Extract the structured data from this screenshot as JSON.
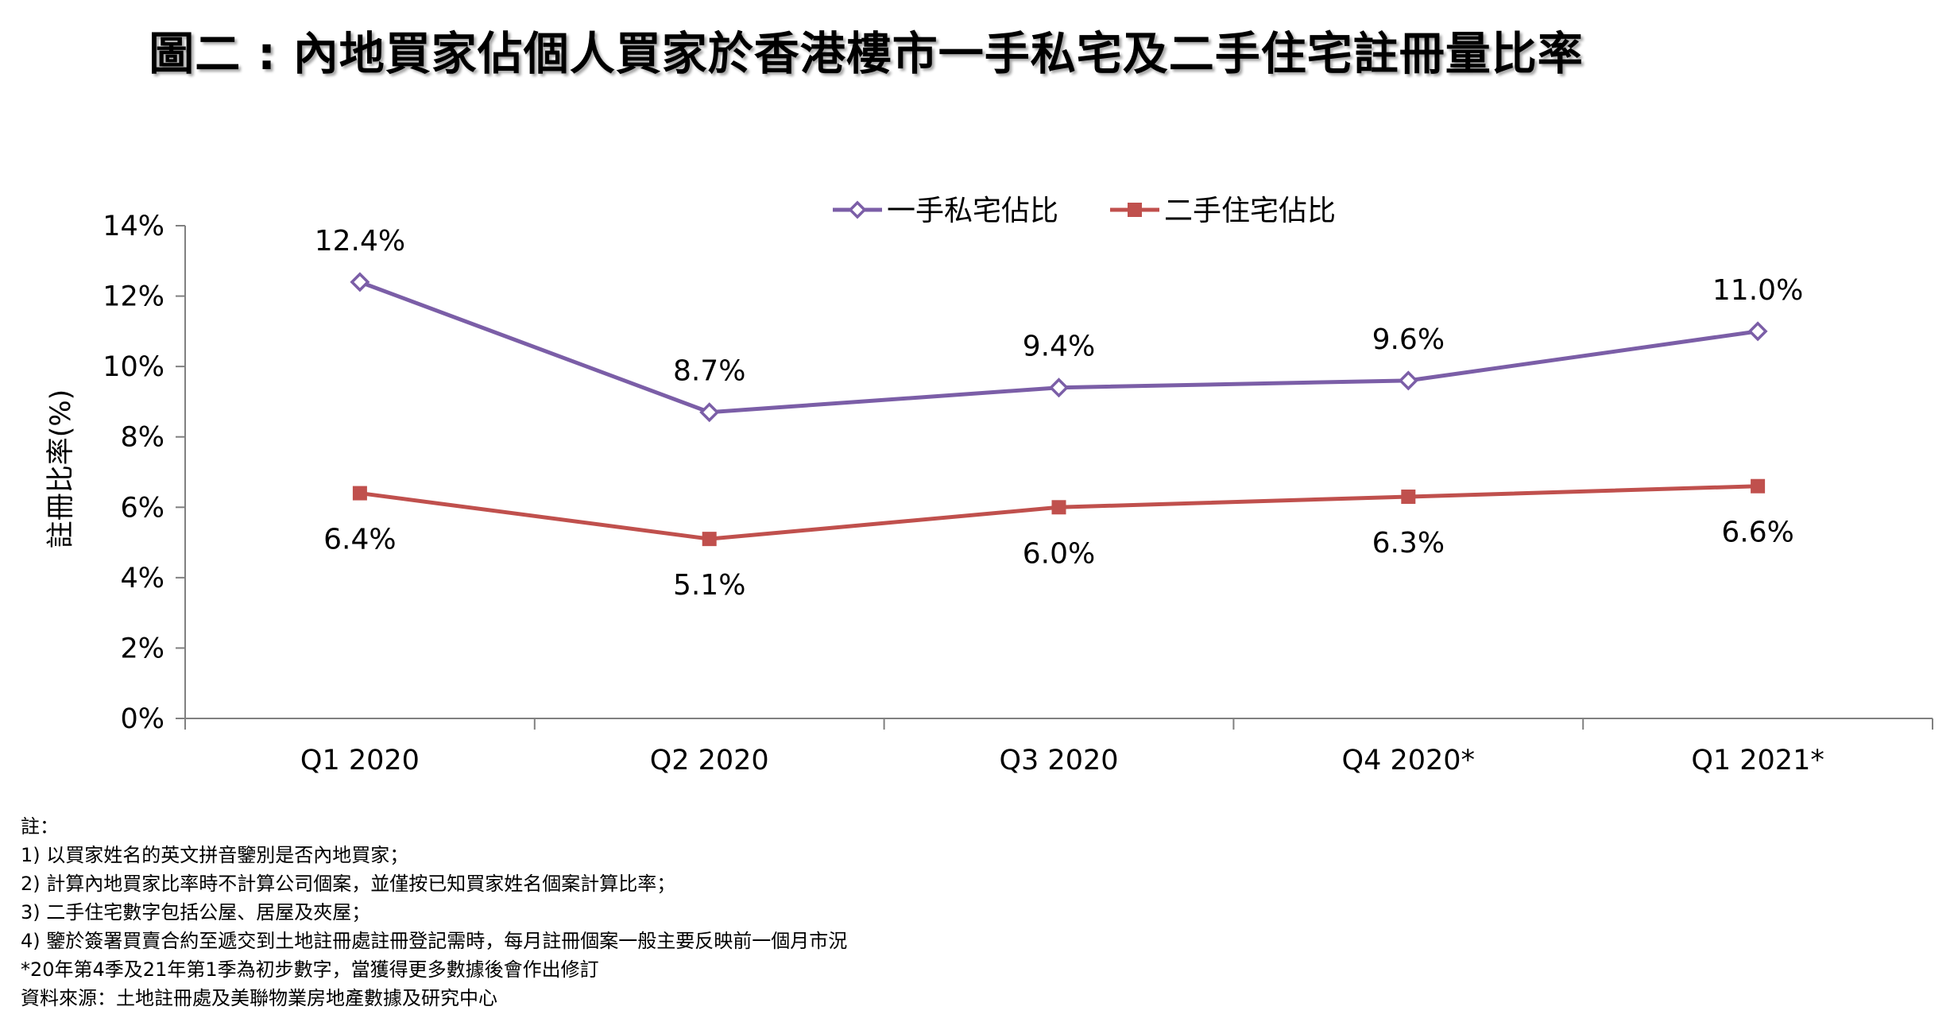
{
  "title": "圖二 : 內地買家佔個人買家於香港樓市一手私宅及二手住宅註冊量比率",
  "colors": {
    "series1": "#7b5ea7",
    "series2": "#c0504d",
    "axis": "#808080"
  },
  "chart_data": {
    "type": "line",
    "title": "圖二 : 內地買家佔個人買家於香港樓市一手私宅及二手住宅註冊量比率",
    "ylabel": "註冊比率(%)",
    "xlabel": "",
    "categories": [
      "Q1 2020",
      "Q2 2020",
      "Q3 2020",
      "Q4 2020*",
      "Q1 2021*"
    ],
    "ylim": [
      0,
      14
    ],
    "y_ticks": [
      0,
      2,
      4,
      6,
      8,
      10,
      12,
      14
    ],
    "y_tick_labels": [
      "0%",
      "2%",
      "4%",
      "6%",
      "8%",
      "10%",
      "12%",
      "14%"
    ],
    "grid": false,
    "legend": "top-center",
    "series": [
      {
        "name": "一手私宅佔比",
        "values": [
          12.4,
          8.7,
          9.4,
          9.6,
          11.0
        ],
        "labels": [
          "12.4%",
          "8.7%",
          "9.4%",
          "9.6%",
          "11.0%"
        ],
        "marker": "diamond-open"
      },
      {
        "name": "二手住宅佔比",
        "values": [
          6.4,
          5.1,
          6.0,
          6.3,
          6.6
        ],
        "labels": [
          "6.4%",
          "5.1%",
          "6.0%",
          "6.3%",
          "6.6%"
        ],
        "marker": "square"
      }
    ]
  },
  "notes": [
    "註：",
    "1) 以買家姓名的英文拼音鑒別是否內地買家；",
    "2) 計算內地買家比率時不計算公司個案，並僅按已知買家姓名個案計算比率；",
    "3) 二手住宅數字包括公屋、居屋及夾屋；",
    "4) 鑒於簽署買賣合約至遞交到土地註冊處註冊登記需時，每月註冊個案一般主要反映前一個月市況",
    "*20年第4季及21年第1季為初步數字，當獲得更多數據後會作出修訂",
    "資料來源：土地註冊處及美聯物業房地產數據及研究中心"
  ]
}
